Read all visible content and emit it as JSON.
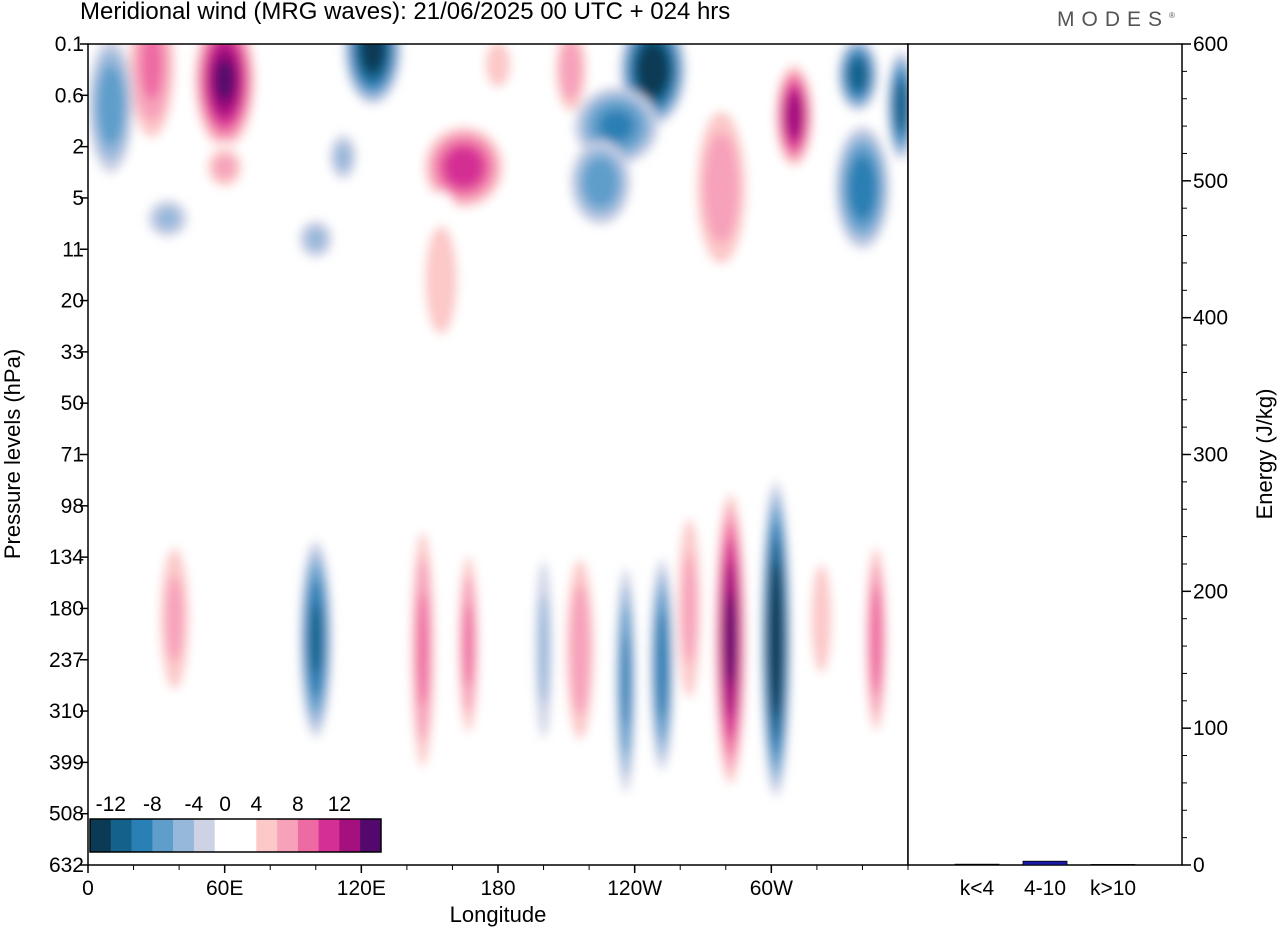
{
  "title": "Meridional wind (MRG waves):  21/06/2025  00 UTC  + 024 hrs",
  "logo": "MODES",
  "logo_mark": "®",
  "chart_data": [
    {
      "type": "heatmap",
      "title": "Meridional wind (MRG waves):  21/06/2025  00 UTC  + 024 hrs",
      "xlabel": "Longitude",
      "ylabel": "Pressure levels (hPa)",
      "x_ticks": [
        "0",
        "60E",
        "120E",
        "180",
        "120W",
        "60W"
      ],
      "x_tick_degrees": [
        0,
        60,
        120,
        180,
        240,
        300
      ],
      "xlim": [
        0,
        360
      ],
      "y_ticks": [
        "0.1",
        "0.6",
        "2",
        "5",
        "11",
        "20",
        "33",
        "50",
        "71",
        "98",
        "134",
        "180",
        "237",
        "310",
        "399",
        "508",
        "632"
      ],
      "colorbar": {
        "labels": [
          "-12",
          "-8",
          "-4",
          "0",
          "4",
          "8",
          "12"
        ],
        "levels": [
          -14,
          -12,
          -10,
          -8,
          -6,
          -4,
          -2,
          2,
          4,
          6,
          8,
          10,
          12,
          14
        ],
        "colors": [
          "#0b3a54",
          "#14628c",
          "#2a7fb4",
          "#5f9ecb",
          "#96b8db",
          "#cdd2e5",
          "#ffffff",
          "#ffffff",
          "#fcc8c8",
          "#f7a1bb",
          "#ee6aa3",
          "#d42f94",
          "#a5107f",
          "#52086c"
        ]
      },
      "features": [
        {
          "lon": 100,
          "level": 11.6,
          "value": -11,
          "w": 8,
          "h": 2.2
        },
        {
          "lon": 147,
          "level": 11.8,
          "value": 9,
          "w": 7,
          "h": 3.2
        },
        {
          "lon": 167,
          "level": 11.7,
          "value": 9,
          "w": 6,
          "h": 2.4
        },
        {
          "lon": 216,
          "level": 11.8,
          "value": 8,
          "w": 9,
          "h": 2.6
        },
        {
          "lon": 236,
          "level": 12.4,
          "value": -9,
          "w": 5,
          "h": 2.6
        },
        {
          "lon": 252,
          "level": 12.1,
          "value": -10,
          "w": 6,
          "h": 2.4
        },
        {
          "lon": 264,
          "level": 11.0,
          "value": 7,
          "w": 8,
          "h": 2.8
        },
        {
          "lon": 282,
          "level": 11.6,
          "value": 15,
          "w": 8,
          "h": 3.4
        },
        {
          "lon": 302,
          "level": 11.6,
          "value": -15,
          "w": 7,
          "h": 3.4
        },
        {
          "lon": 346,
          "level": 11.6,
          "value": 10,
          "w": 6,
          "h": 2.4
        },
        {
          "lon": 38,
          "level": 11.2,
          "value": 7,
          "w": 10,
          "h": 2.2
        },
        {
          "lon": 200,
          "level": 11.8,
          "value": -5,
          "w": 5,
          "h": 2.4
        },
        {
          "lon": 322,
          "level": 11.2,
          "value": 5,
          "w": 10,
          "h": 2.4
        },
        {
          "lon": 28,
          "level": 0.4,
          "value": 9,
          "w": 14,
          "h": 2.0
        },
        {
          "lon": 10,
          "level": 1.2,
          "value": -8,
          "w": 12,
          "h": 1.6
        },
        {
          "lon": 60,
          "level": 0.7,
          "value": 15,
          "w": 16,
          "h": 1.6
        },
        {
          "lon": 125,
          "level": 0.1,
          "value": -14,
          "w": 14,
          "h": 1.2
        },
        {
          "lon": 165,
          "level": 2.4,
          "value": 12,
          "w": 22,
          "h": 1.0
        },
        {
          "lon": 180,
          "level": 0.4,
          "value": 6,
          "w": 10,
          "h": 0.8
        },
        {
          "lon": 212,
          "level": 0.5,
          "value": 8,
          "w": 10,
          "h": 1.2
        },
        {
          "lon": 248,
          "level": 0.5,
          "value": -15,
          "w": 16,
          "h": 1.2
        },
        {
          "lon": 232,
          "level": 1.6,
          "value": -9,
          "w": 22,
          "h": 0.9
        },
        {
          "lon": 278,
          "level": 2.8,
          "value": 8,
          "w": 16,
          "h": 2.2
        },
        {
          "lon": 310,
          "level": 1.4,
          "value": 14,
          "w": 10,
          "h": 1.2
        },
        {
          "lon": 338,
          "level": 0.6,
          "value": -12,
          "w": 10,
          "h": 0.8
        },
        {
          "lon": 357,
          "level": 1.2,
          "value": -12,
          "w": 7,
          "h": 1.2
        },
        {
          "lon": 340,
          "level": 2.8,
          "value": -10,
          "w": 14,
          "h": 1.4
        },
        {
          "lon": 225,
          "level": 2.7,
          "value": -8,
          "w": 16,
          "h": 1.0
        },
        {
          "lon": 112,
          "level": 2.2,
          "value": -5,
          "w": 8,
          "h": 0.6
        },
        {
          "lon": 60,
          "level": 2.4,
          "value": 7,
          "w": 12,
          "h": 0.6
        },
        {
          "lon": 155,
          "level": 4.6,
          "value": 5,
          "w": 16,
          "h": 2.4
        },
        {
          "lon": 35,
          "level": 3.4,
          "value": -5,
          "w": 12,
          "h": 0.5
        },
        {
          "lon": 100,
          "level": 3.8,
          "value": -5,
          "w": 10,
          "h": 0.5
        }
      ]
    },
    {
      "type": "bar",
      "categories": [
        "k<4",
        "4-10",
        "k>10"
      ],
      "values": [
        0.6,
        2.8,
        0.4
      ],
      "ylabel": "Energy (J/kg)",
      "ylim": [
        0,
        600
      ],
      "y_ticks": [
        "0",
        "100",
        "200",
        "300",
        "400",
        "500",
        "600"
      ],
      "bar_color": "#1a1aa6"
    }
  ]
}
